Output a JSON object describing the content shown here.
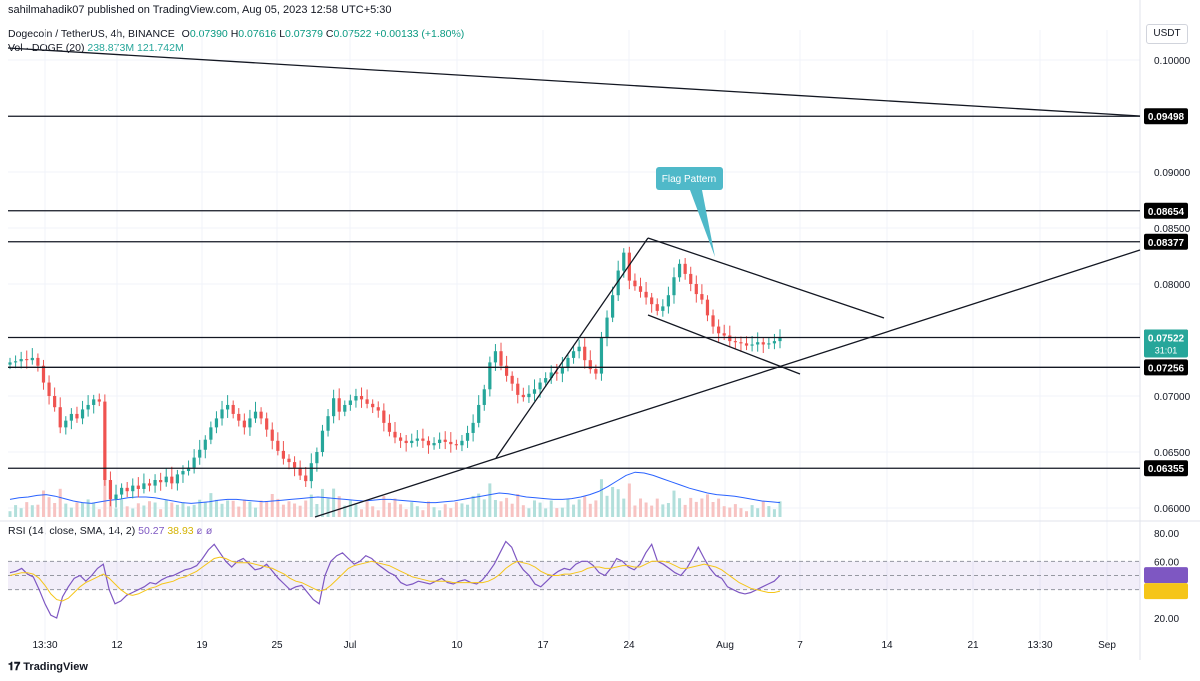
{
  "header": {
    "publisher": "sahilmahadik07 published on TradingView.com, Aug 05, 2023 12:58 UTC+5:30"
  },
  "legend": {
    "symbol": "Dogecoin / TetherUS, 4h, BINANCE",
    "open_label": "O",
    "open": "0.07390",
    "high_label": "H",
    "high": "0.07616",
    "low_label": "L",
    "low": "0.07379",
    "close_label": "C",
    "close": "0.07522",
    "change": "+0.00133 (+1.80%)",
    "volume_label": "Vol · DOGE (20)",
    "volume": "238.873M",
    "volume_ma": "121.742M"
  },
  "rsi_legend": {
    "label": "RSI (14, close, SMA, 14, 2)",
    "rsi": "50.27",
    "rsi_ma": "38.93",
    "extra1": "ø",
    "extra2": "ø"
  },
  "currency_button": "USDT",
  "footer": {
    "brand": "TradingView"
  },
  "annotation": {
    "label": "Flag Pattern"
  },
  "colors": {
    "up": "#26a69a",
    "down": "#ef5350",
    "volume_ma": "#2962ff",
    "rsi_line": "#7e57c2",
    "rsi_ma": "#f5c518",
    "callout": "#4fb9c9"
  },
  "chart_data": {
    "type": "candlestick",
    "symbol": "Dogecoin / TetherUS",
    "timeframe": "4h",
    "price_axis": {
      "ticks": [
        "0.10000",
        "0.09000",
        "0.08500",
        "0.08000",
        "0.07000",
        "0.06500",
        "0.06000"
      ],
      "ylim": [
        0.0595,
        0.1025
      ]
    },
    "time_axis": {
      "ticks": [
        "13:30",
        "12",
        "19",
        "25",
        "Jul",
        "10",
        "17",
        "24",
        "Aug",
        "7",
        "14",
        "21",
        "13:30",
        "Sep"
      ]
    },
    "horizontal_levels": [
      {
        "value": 0.09498,
        "label": "0.09498"
      },
      {
        "value": 0.08654,
        "label": "0.08654"
      },
      {
        "value": 0.08377,
        "label": "0.08377"
      },
      {
        "value": 0.07522,
        "label": "0.07522"
      },
      {
        "value": 0.07256,
        "label": "0.07256"
      },
      {
        "value": 0.06355,
        "label": "0.06355"
      }
    ],
    "last_price": {
      "value": 0.07522,
      "label": "0.07522",
      "countdown": "31:01"
    },
    "close_series": [
      0.073,
      0.0731,
      0.0733,
      0.0732,
      0.0734,
      0.0727,
      0.0712,
      0.07,
      0.069,
      0.0672,
      0.0678,
      0.0684,
      0.068,
      0.0688,
      0.0692,
      0.0697,
      0.0695,
      0.0625,
      0.0608,
      0.0612,
      0.0618,
      0.0615,
      0.062,
      0.0617,
      0.0622,
      0.062,
      0.0625,
      0.0623,
      0.0628,
      0.0622,
      0.063,
      0.0633,
      0.0636,
      0.0645,
      0.0652,
      0.0661,
      0.0672,
      0.068,
      0.0688,
      0.0692,
      0.0684,
      0.0678,
      0.0672,
      0.068,
      0.0686,
      0.068,
      0.067,
      0.066,
      0.0651,
      0.0644,
      0.0641,
      0.0636,
      0.0629,
      0.0624,
      0.064,
      0.065,
      0.0669,
      0.0682,
      0.0698,
      0.0686,
      0.0692,
      0.0696,
      0.07,
      0.0697,
      0.0693,
      0.069,
      0.0687,
      0.0676,
      0.0668,
      0.0663,
      0.066,
      0.0658,
      0.066,
      0.0662,
      0.066,
      0.0656,
      0.0658,
      0.0661,
      0.0659,
      0.0657,
      0.0656,
      0.066,
      0.0667,
      0.0676,
      0.0692,
      0.0706,
      0.073,
      0.074,
      0.0727,
      0.0718,
      0.0711,
      0.0701,
      0.0699,
      0.0702,
      0.0706,
      0.0712,
      0.0716,
      0.0721,
      0.072,
      0.0726,
      0.0734,
      0.074,
      0.0744,
      0.0732,
      0.0724,
      0.072,
      0.0752,
      0.077,
      0.079,
      0.0812,
      0.0828,
      0.0803,
      0.0798,
      0.0793,
      0.0788,
      0.0782,
      0.0776,
      0.078,
      0.079,
      0.0806,
      0.0818,
      0.0809,
      0.08,
      0.0791,
      0.0786,
      0.0772,
      0.0762,
      0.0756,
      0.0754,
      0.0749,
      0.0748,
      0.0747,
      0.0745,
      0.0746,
      0.0748,
      0.0746,
      0.0747,
      0.0749,
      0.0752
    ],
    "volume_ma_series": [
      22,
      24,
      25,
      27,
      28,
      26,
      23,
      20,
      18,
      17,
      19,
      21,
      22,
      24,
      25,
      25,
      24,
      22,
      20,
      18,
      17,
      18,
      19,
      21,
      22,
      22,
      21,
      20,
      19,
      20,
      21,
      22,
      23,
      24,
      25,
      24,
      23,
      22,
      21,
      20,
      21,
      22,
      22,
      21,
      20,
      19,
      18,
      18,
      19,
      20,
      22,
      24,
      26,
      28,
      30,
      29,
      27,
      25,
      24,
      23,
      22,
      22,
      23,
      25,
      28,
      32,
      38,
      45,
      52,
      56,
      55,
      52,
      48,
      44,
      40,
      36,
      33,
      30,
      28,
      27,
      26,
      24,
      22,
      20,
      19,
      18
    ],
    "rsi": {
      "params": "RSI (14, close, SMA, 14, 2)",
      "last": 50.27,
      "ma_last": 38.93,
      "ticks": [
        "80.00",
        "60.00",
        "40.00",
        "20.00"
      ],
      "band": [
        40,
        60
      ],
      "ylim": [
        12,
        88
      ],
      "series": [
        52,
        53,
        55,
        51,
        49,
        40,
        30,
        22,
        20,
        35,
        42,
        48,
        50,
        46,
        50,
        55,
        58,
        40,
        30,
        32,
        36,
        38,
        40,
        42,
        45,
        44,
        47,
        49,
        50,
        52,
        54,
        55,
        57,
        62,
        68,
        72,
        66,
        60,
        56,
        60,
        62,
        58,
        54,
        55,
        58,
        53,
        48,
        44,
        40,
        42,
        43,
        38,
        33,
        30,
        50,
        60,
        64,
        66,
        62,
        58,
        60,
        64,
        62,
        58,
        55,
        52,
        50,
        45,
        43,
        44,
        46,
        45,
        44,
        46,
        48,
        45,
        44,
        46,
        47,
        45,
        44,
        47,
        52,
        58,
        66,
        74,
        70,
        60,
        54,
        50,
        44,
        42,
        46,
        50,
        53,
        55,
        54,
        58,
        60,
        60,
        57,
        52,
        50,
        55,
        62,
        60,
        56,
        54,
        58,
        66,
        72,
        60,
        58,
        55,
        52,
        50,
        55,
        62,
        70,
        62,
        55,
        50,
        48,
        42,
        40,
        38,
        37,
        38,
        40,
        42,
        44,
        46,
        50
      ],
      "ma_series": [
        50,
        51,
        52,
        52,
        51,
        48,
        43,
        37,
        33,
        32,
        34,
        38,
        42,
        45,
        47,
        49,
        51,
        48,
        44,
        40,
        37,
        36,
        37,
        39,
        41,
        42,
        44,
        45,
        46,
        48,
        49,
        51,
        53,
        56,
        59,
        62,
        63,
        62,
        60,
        59,
        59,
        59,
        58,
        57,
        56,
        55,
        53,
        51,
        48,
        46,
        45,
        43,
        41,
        39,
        40,
        43,
        47,
        51,
        55,
        57,
        58,
        59,
        60,
        59,
        58,
        57,
        55,
        53,
        51,
        49,
        48,
        47,
        46,
        46,
        46,
        46,
        45,
        45,
        45,
        45,
        45,
        45,
        46,
        48,
        51,
        55,
        58,
        60,
        59,
        58,
        56,
        53,
        51,
        50,
        50,
        51,
        51,
        52,
        53,
        55,
        56,
        56,
        55,
        55,
        56,
        57,
        57,
        56,
        56,
        58,
        60,
        60,
        60,
        59,
        57,
        55,
        55,
        56,
        57,
        58,
        57,
        56,
        54,
        51,
        48,
        45,
        43,
        41,
        40,
        39,
        38,
        38,
        39
      ]
    }
  }
}
